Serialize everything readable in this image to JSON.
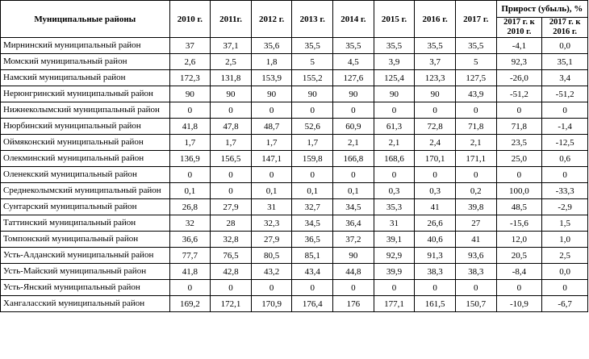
{
  "header": {
    "district": "Муниципальные районы",
    "years": [
      "2010 г.",
      "2011г.",
      "2012 г.",
      "2013 г.",
      "2014 г.",
      "2015 г.",
      "2016 г.",
      "2017 г."
    ],
    "growth": "Прирост (убыль), %",
    "growth_sub": [
      "2017 г. к 2010 г.",
      "2017 г. к 2016 г."
    ]
  },
  "rows": [
    {
      "name": "Мирнинский муниципальный район",
      "values": [
        "37",
        "37,1",
        "35,6",
        "35,5",
        "35,5",
        "35,5",
        "35,5",
        "35,5",
        "-4,1",
        "0,0"
      ]
    },
    {
      "name": "Момский муниципальный район",
      "values": [
        "2,6",
        "2,5",
        "1,8",
        "5",
        "4,5",
        "3,9",
        "3,7",
        "5",
        "92,3",
        "35,1"
      ]
    },
    {
      "name": "Намский муниципальный район",
      "values": [
        "172,3",
        "131,8",
        "153,9",
        "155,2",
        "127,6",
        "125,4",
        "123,3",
        "127,5",
        "-26,0",
        "3,4"
      ]
    },
    {
      "name": "Нерюнгринский муниципальный район",
      "values": [
        "90",
        "90",
        "90",
        "90",
        "90",
        "90",
        "90",
        "43,9",
        "-51,2",
        "-51,2"
      ]
    },
    {
      "name": "Нижнеколымский муниципальный район",
      "values": [
        "0",
        "0",
        "0",
        "0",
        "0",
        "0",
        "0",
        "0",
        "0",
        "0"
      ]
    },
    {
      "name": "Нюрбинский муниципальный район",
      "values": [
        "41,8",
        "47,8",
        "48,7",
        "52,6",
        "60,9",
        "61,3",
        "72,8",
        "71,8",
        "71,8",
        "-1,4"
      ]
    },
    {
      "name": "Оймяконский муниципальный район",
      "values": [
        "1,7",
        "1,7",
        "1,7",
        "1,7",
        "2,1",
        "2,1",
        "2,4",
        "2,1",
        "23,5",
        "-12,5"
      ]
    },
    {
      "name": "Олекминский муниципальный район",
      "values": [
        "136,9",
        "156,5",
        "147,1",
        "159,8",
        "166,8",
        "168,6",
        "170,1",
        "171,1",
        "25,0",
        "0,6"
      ]
    },
    {
      "name": "Оленекский муниципальный район",
      "values": [
        "0",
        "0",
        "0",
        "0",
        "0",
        "0",
        "0",
        "0",
        "0",
        "0"
      ]
    },
    {
      "name": "Среднеколымский муниципальный район",
      "values": [
        "0,1",
        "0",
        "0,1",
        "0,1",
        "0,1",
        "0,3",
        "0,3",
        "0,2",
        "100,0",
        "-33,3"
      ]
    },
    {
      "name": "Сунтарский муниципальный район",
      "values": [
        "26,8",
        "27,9",
        "31",
        "32,7",
        "34,5",
        "35,3",
        "41",
        "39,8",
        "48,5",
        "-2,9"
      ]
    },
    {
      "name": "Таттинский муниципальный район",
      "values": [
        "32",
        "28",
        "32,3",
        "34,5",
        "36,4",
        "31",
        "26,6",
        "27",
        "-15,6",
        "1,5"
      ]
    },
    {
      "name": "Томпонский муниципальный район",
      "values": [
        "36,6",
        "32,8",
        "27,9",
        "36,5",
        "37,2",
        "39,1",
        "40,6",
        "41",
        "12,0",
        "1,0"
      ]
    },
    {
      "name": "Усть-Алданский муниципальный район",
      "values": [
        "77,7",
        "76,5",
        "80,5",
        "85,1",
        "90",
        "92,9",
        "91,3",
        "93,6",
        "20,5",
        "2,5"
      ]
    },
    {
      "name": "Усть-Майский муниципальный район",
      "values": [
        "41,8",
        "42,8",
        "43,2",
        "43,4",
        "44,8",
        "39,9",
        "38,3",
        "38,3",
        "-8,4",
        "0,0"
      ]
    },
    {
      "name": "Усть-Янский муниципальный район",
      "values": [
        "0",
        "0",
        "0",
        "0",
        "0",
        "0",
        "0",
        "0",
        "0",
        "0"
      ]
    },
    {
      "name": "Хангаласский муниципальный район",
      "values": [
        "169,2",
        "172,1",
        "170,9",
        "176,4",
        "176",
        "177,1",
        "161,5",
        "150,7",
        "-10,9",
        "-6,7"
      ]
    }
  ]
}
